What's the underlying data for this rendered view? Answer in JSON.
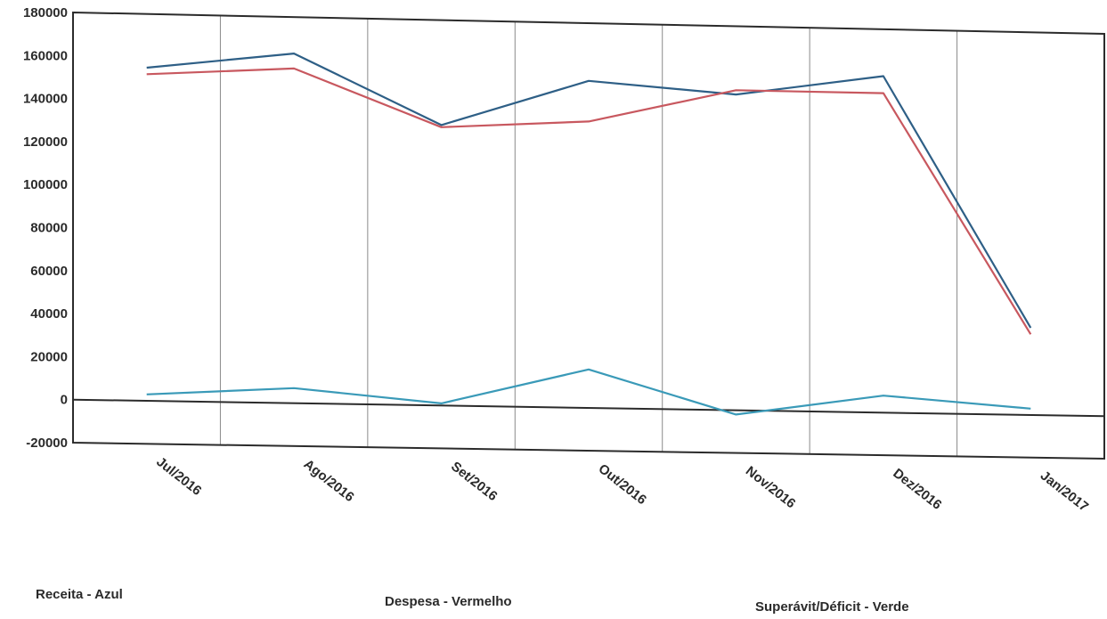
{
  "chart_data": {
    "type": "line",
    "categories": [
      "Jul/2016",
      "Ago/2016",
      "Set/2016",
      "Out/2016",
      "Nov/2016",
      "Dez/2016",
      "Jan/2017"
    ],
    "series": [
      {
        "name": "Receita - Azul",
        "color": "#2e5f86",
        "values": [
          155000,
          163000,
          131000,
          153000,
          148000,
          158000,
          41000
        ]
      },
      {
        "name": "Despesa - Vermelho",
        "color": "#c8585f",
        "values": [
          152000,
          156000,
          130000,
          134000,
          150000,
          150000,
          38000
        ]
      },
      {
        "name": "Superávit/Déficit - Verde",
        "color": "#3a9ab8",
        "values": [
          3000,
          7000,
          1000,
          18000,
          -2000,
          8000,
          3000
        ]
      }
    ],
    "yticks": [
      180000,
      160000,
      140000,
      120000,
      100000,
      80000,
      60000,
      40000,
      20000,
      0,
      -20000
    ],
    "ylim": [
      -20000,
      180000
    ],
    "title": "",
    "xlabel": "",
    "ylabel": "",
    "grid": "vertical",
    "legend_position": "bottom"
  }
}
